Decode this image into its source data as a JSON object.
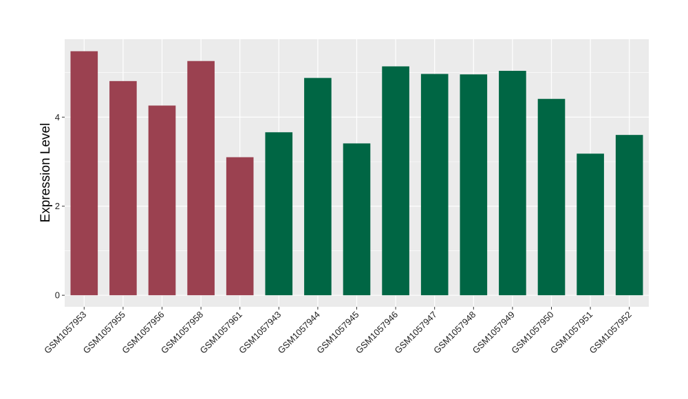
{
  "chart_data": {
    "type": "bar",
    "title": "",
    "xlabel": "",
    "ylabel": "Expression Level",
    "categories": [
      "GSM1057953",
      "GSM1057955",
      "GSM1057956",
      "GSM1057958",
      "GSM1057961",
      "GSM1057943",
      "GSM1057944",
      "GSM1057945",
      "GSM1057946",
      "GSM1057947",
      "GSM1057948",
      "GSM1057949",
      "GSM1057950",
      "GSM1057951",
      "GSM1057952"
    ],
    "values": [
      5.48,
      4.81,
      4.26,
      5.26,
      3.1,
      3.66,
      4.88,
      3.41,
      5.14,
      4.97,
      4.96,
      5.04,
      4.41,
      3.18,
      3.6
    ],
    "bar_colors": [
      "#9b4150",
      "#9b4150",
      "#9b4150",
      "#9b4150",
      "#9b4150",
      "#006644",
      "#006644",
      "#006644",
      "#006644",
      "#006644",
      "#006644",
      "#006644",
      "#006644",
      "#006644",
      "#006644"
    ],
    "yticks": [
      0,
      2,
      4
    ],
    "ylim": [
      -0.26,
      5.75
    ],
    "grid": true,
    "legend": "none",
    "panel_background": "#ebebeb",
    "gridline_color": "#ffffff"
  }
}
